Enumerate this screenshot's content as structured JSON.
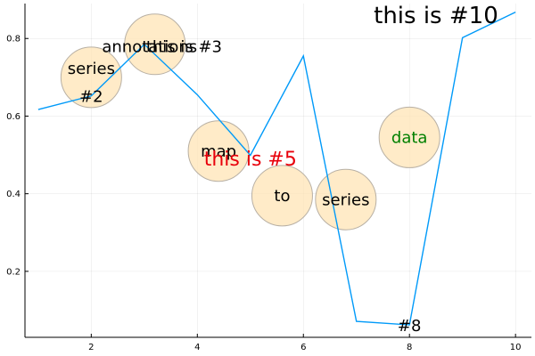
{
  "chart_data": {
    "type": "line",
    "title": "",
    "xlabel": "",
    "ylabel": "",
    "xlim": [
      0.75,
      10.3
    ],
    "ylim": [
      0.03,
      0.89
    ],
    "x_ticks": [
      2,
      4,
      6,
      8,
      10
    ],
    "y_ticks": [
      0.2,
      0.4,
      0.6,
      0.8
    ],
    "grid": true,
    "legend": "none",
    "series": [
      {
        "color": "#009AF9",
        "x": [
          1,
          2,
          3,
          4,
          5,
          6,
          7,
          8,
          9,
          10
        ],
        "y": [
          0.617,
          0.652,
          0.785,
          0.655,
          0.499,
          0.755,
          0.071,
          0.062,
          0.802,
          0.868
        ]
      }
    ],
    "bubbles": [
      {
        "x": 2.0,
        "y": 0.7
      },
      {
        "x": 3.2,
        "y": 0.785
      },
      {
        "x": 4.4,
        "y": 0.51
      },
      {
        "x": 5.6,
        "y": 0.395
      },
      {
        "x": 6.8,
        "y": 0.385
      },
      {
        "x": 8.0,
        "y": 0.545
      }
    ],
    "bubble_color": "#FFE4B5",
    "annotations": [
      {
        "text": "series",
        "x": 2.0,
        "y": 0.7,
        "color": "#000000",
        "size": 18,
        "line": 0
      },
      {
        "text": "#2",
        "x": 2.0,
        "y": 0.7,
        "color": "#000000",
        "size": 18,
        "line": 1
      },
      {
        "text": "annotations",
        "x": 3.1,
        "y": 0.78,
        "color": "#000000",
        "size": 18,
        "line": 0
      },
      {
        "text": "this is #3",
        "x": 3.75,
        "y": 0.78,
        "color": "#000000",
        "size": 18,
        "line": 0
      },
      {
        "text": "map",
        "x": 4.4,
        "y": 0.51,
        "color": "#000000",
        "size": 18,
        "line": 0
      },
      {
        "text": "this is #5",
        "x": 5.0,
        "y": 0.49,
        "color": "#E8000B",
        "size": 22,
        "line": 0
      },
      {
        "text": "to",
        "x": 5.6,
        "y": 0.395,
        "color": "#000000",
        "size": 18,
        "line": 0
      },
      {
        "text": "series",
        "x": 6.8,
        "y": 0.385,
        "color": "#000000",
        "size": 18,
        "line": 0
      },
      {
        "text": "#8",
        "x": 8.0,
        "y": 0.06,
        "color": "#000000",
        "size": 18,
        "line": 0
      },
      {
        "text": "data",
        "x": 8.0,
        "y": 0.545,
        "color": "#008000",
        "size": 18,
        "line": 0
      },
      {
        "text": "this is #10",
        "x": 8.5,
        "y": 0.86,
        "color": "#000000",
        "size": 26,
        "line": 0
      }
    ]
  }
}
